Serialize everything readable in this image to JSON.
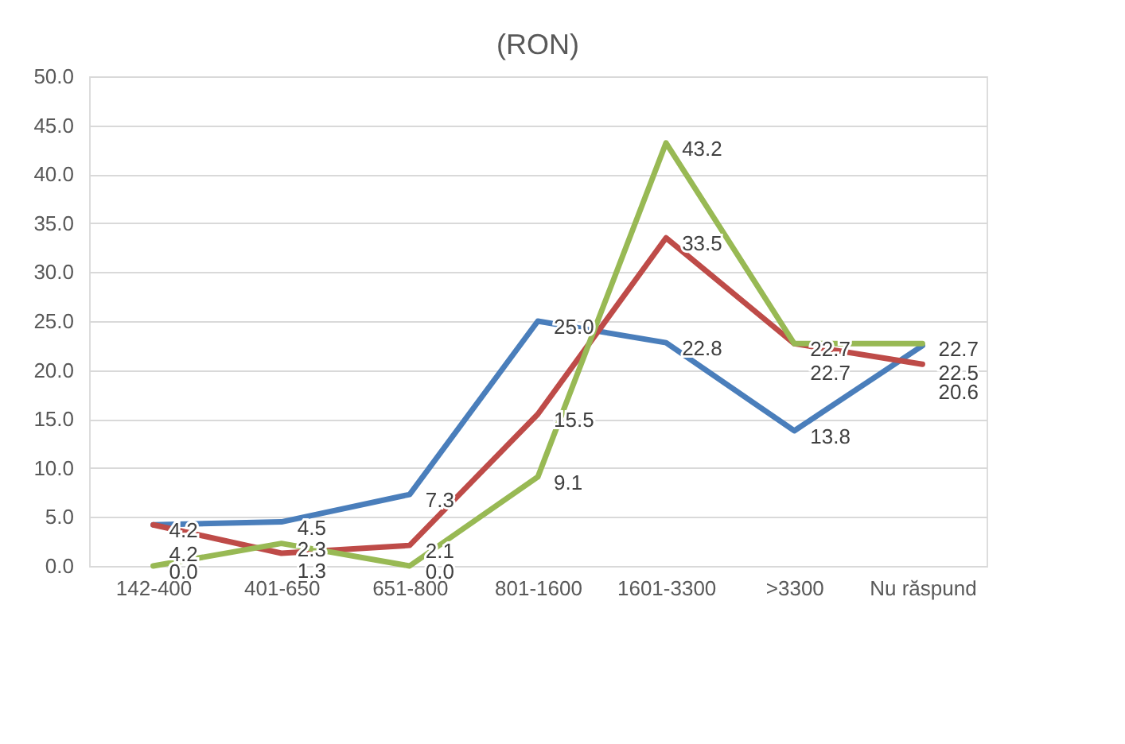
{
  "chart_data": {
    "type": "line",
    "title": "(RON)",
    "categories": [
      "142-400",
      "401-650",
      "651-800",
      "801-1600",
      "1601-3300",
      ">3300",
      "Nu răspund"
    ],
    "series": [
      {
        "color": "#4a7ebb",
        "values": [
          4.2,
          4.5,
          7.3,
          25.0,
          22.8,
          13.8,
          22.5
        ],
        "value_labels": [
          "4.2",
          "4.5",
          "7.3",
          "25.0",
          "22.8",
          "13.8",
          "22.5"
        ]
      },
      {
        "color": "#be4b48",
        "values": [
          4.2,
          1.3,
          2.1,
          15.5,
          33.5,
          22.7,
          20.6
        ],
        "value_labels": [
          "4.2",
          "1.3",
          "2.1",
          "15.5",
          "33.5",
          "22.7",
          "20.6"
        ]
      },
      {
        "color": "#98b954",
        "values": [
          0.0,
          2.3,
          0.0,
          9.1,
          43.2,
          22.7,
          22.7
        ],
        "value_labels": [
          "0.0",
          "2.3",
          "0.0",
          "9.1",
          "43.2",
          "22.7",
          "22.7"
        ]
      }
    ],
    "ylim": [
      0,
      50
    ],
    "yticks": [
      {
        "value": 0,
        "label": "0.0"
      },
      {
        "value": 5,
        "label": "5.0"
      },
      {
        "value": 10,
        "label": "10.0"
      },
      {
        "value": 15,
        "label": "15.0"
      },
      {
        "value": 20,
        "label": "20.0"
      },
      {
        "value": 25,
        "label": "25.0"
      },
      {
        "value": 30,
        "label": "30.0"
      },
      {
        "value": 35,
        "label": "35.0"
      },
      {
        "value": 40,
        "label": "40.0"
      },
      {
        "value": 45,
        "label": "45.0"
      },
      {
        "value": 50,
        "label": "50.0"
      }
    ],
    "grid": "y",
    "marker": "none",
    "line_style": "solid"
  }
}
